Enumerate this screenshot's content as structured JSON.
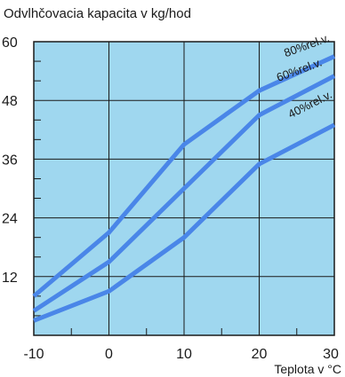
{
  "chart_data": {
    "type": "line",
    "title": "Odvlhčovacia kapacita v kg/hod",
    "xlabel": "Teplota v °C",
    "ylabel": "",
    "xlim": [
      -10,
      30
    ],
    "ylim": [
      0,
      60
    ],
    "x_ticks": [
      -10,
      0,
      10,
      20,
      30
    ],
    "y_ticks": [
      12,
      24,
      36,
      48,
      60
    ],
    "grid": true,
    "legend": "inline labels on curves",
    "colors": {
      "plot_bg": "#9fd7ef",
      "line": "#4a86e8",
      "grid": "#1a1a1a"
    },
    "series": [
      {
        "name": "80%rel.v.",
        "x": [
          -10,
          0,
          10,
          20,
          30
        ],
        "y": [
          8,
          21,
          39,
          50,
          57
        ]
      },
      {
        "name": "60%rel.v.",
        "x": [
          -10,
          0,
          10,
          20,
          30
        ],
        "y": [
          5,
          15,
          30,
          45,
          53
        ]
      },
      {
        "name": "40%rel.v.",
        "x": [
          -10,
          0,
          10,
          20,
          30
        ],
        "y": [
          3,
          9,
          20,
          35,
          43
        ]
      }
    ]
  }
}
